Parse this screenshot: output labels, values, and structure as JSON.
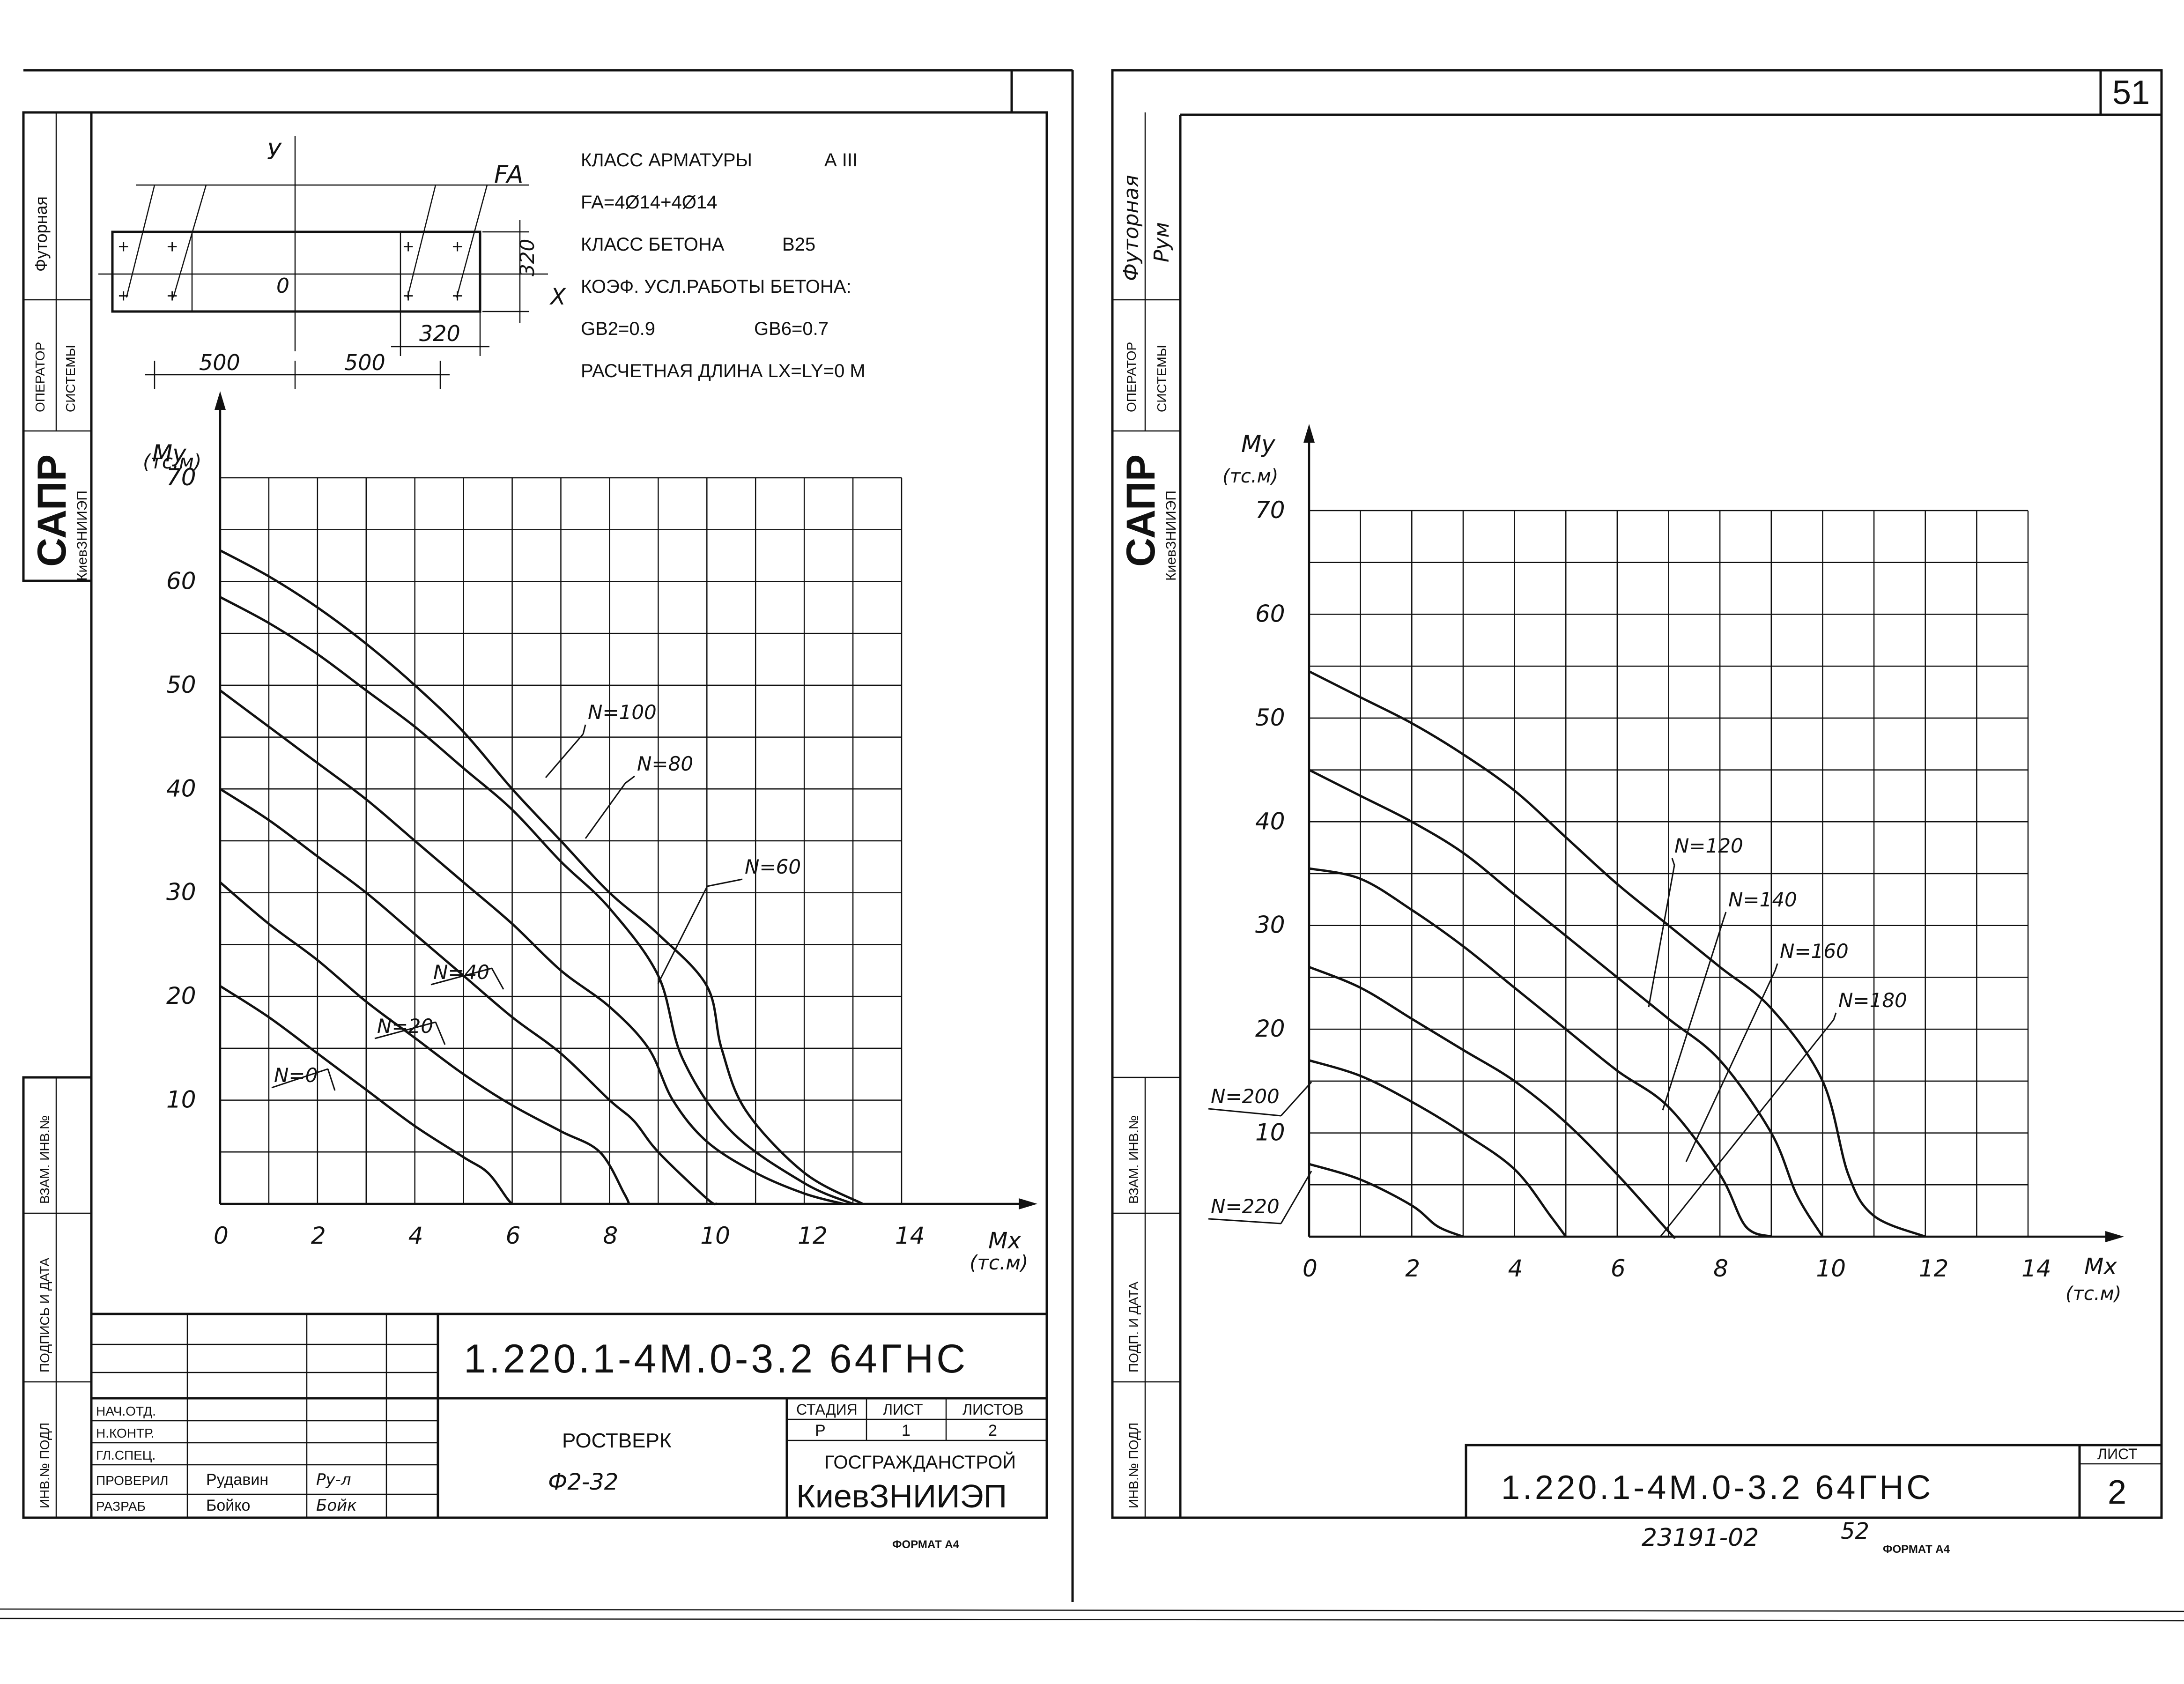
{
  "sheet_number": "51",
  "stamps": {
    "futornaya": "Футорная",
    "futornaya_sign": "Рум",
    "operator_line1": "ОПЕРАТОР",
    "operator_line2": "СИСТЕМЫ",
    "sapr": "САПР",
    "kiev": "КиевЗНИИЭП",
    "vzam_inv": "ВЗАМ. ИНВ.№",
    "podpis_data": "ПОДПИСЬ И ДАТА",
    "podp_data": "ПОДП. И ДАТА",
    "inv_podl": "ИНВ.№ ПОДЛ"
  },
  "section": {
    "y_axis": "У",
    "x_axis": "Х",
    "origin": "0",
    "fa": "FA",
    "dim_500_left": "500",
    "dim_500_right": "500",
    "dim_320_width": "320",
    "dim_320_height": "320"
  },
  "specs": {
    "line1_label": "КЛАСС АРМАТУРЫ",
    "line1_value": "А III",
    "line2": "FA=4Ø14+4Ø14",
    "line3_label": "КЛАСС БЕТОНА",
    "line3_value": "B25",
    "line4": "КОЭФ. УСЛ.РАБОТЫ БЕТОНА:",
    "line5_a": "GB2=0.9",
    "line5_b": "GB6=0.7",
    "line6": "РАСЧЕТНАЯ ДЛИНА LX=LY=0 М"
  },
  "title_block": {
    "code": "1.220.1-4М.0-3.2 64ГНС",
    "roles": [
      "НАЧ.ОТД.",
      "Н.КОНТР.",
      "ГЛ.СПЕЦ.",
      "ПРОВЕРИЛ",
      "РАЗРАБ"
    ],
    "names": [
      "",
      "",
      "",
      "Рудавин",
      "Бойко"
    ],
    "signatures": [
      "",
      "",
      "",
      "Ру-л",
      "Бойк"
    ],
    "name_line1": "РОСТВЕРК",
    "name_line2": "Ф2-32",
    "stage_header": "СТАДИЯ",
    "sheet_header": "ЛИСТ",
    "sheets_header": "ЛИСТОВ",
    "stage_value": "Р",
    "sheet_value": "1",
    "sheets_value": "2",
    "org_line1": "ГОСГРАЖДАНСТРОЙ",
    "org_line2": "КиевЗНИИЭП",
    "format": "ФОРМАТ А4"
  },
  "right_title_block": {
    "code": "1.220.1-4М.0-3.2 64ГНС",
    "list_header": "ЛИСТ",
    "list_value": "2",
    "archive": "23191-02",
    "page": "52",
    "format": "ФОРМАТ А4"
  },
  "chart_data": [
    {
      "type": "line",
      "ylabel_line1": "Му",
      "ylabel_line2": "(тс.м)",
      "xlabel_line1": "Мх",
      "xlabel_line2": "(тс.м)",
      "xlim": [
        0,
        14
      ],
      "ylim": [
        0,
        70
      ],
      "xticks": [
        "0",
        "2",
        "4",
        "6",
        "8",
        "10",
        "12",
        "14"
      ],
      "yticks": [
        "10",
        "20",
        "30",
        "40",
        "50",
        "60",
        "70"
      ],
      "grid": true,
      "series": [
        {
          "name": "N=0",
          "points": [
            [
              0,
              21
            ],
            [
              1,
              18
            ],
            [
              2,
              14.5
            ],
            [
              3,
              11
            ],
            [
              4,
              7.5
            ],
            [
              5,
              4.5
            ],
            [
              5.5,
              3
            ],
            [
              5.9,
              0.5
            ],
            [
              6,
              0
            ]
          ]
        },
        {
          "name": "N=20",
          "points": [
            [
              0,
              31
            ],
            [
              1,
              27
            ],
            [
              2,
              23.5
            ],
            [
              3,
              19.5
            ],
            [
              4,
              16
            ],
            [
              5,
              12.5
            ],
            [
              6,
              9.5
            ],
            [
              7,
              7
            ],
            [
              7.8,
              5
            ],
            [
              8.3,
              1
            ],
            [
              8.4,
              0
            ]
          ]
        },
        {
          "name": "N=40",
          "points": [
            [
              0,
              40
            ],
            [
              1,
              37
            ],
            [
              2,
              33.5
            ],
            [
              3,
              30
            ],
            [
              4,
              26
            ],
            [
              5,
              22
            ],
            [
              6,
              18
            ],
            [
              7,
              14.5
            ],
            [
              8,
              10
            ],
            [
              8.5,
              8
            ],
            [
              9,
              5
            ],
            [
              10,
              0.5
            ],
            [
              10.2,
              0
            ]
          ]
        },
        {
          "name": "N=60",
          "points": [
            [
              0,
              49.5
            ],
            [
              1,
              46
            ],
            [
              2,
              42.5
            ],
            [
              3,
              39
            ],
            [
              4,
              35
            ],
            [
              5,
              31
            ],
            [
              6,
              27
            ],
            [
              7,
              22.5
            ],
            [
              8,
              19
            ],
            [
              8.8,
              15
            ],
            [
              9.3,
              10
            ],
            [
              10,
              6
            ],
            [
              11,
              3
            ],
            [
              12,
              1
            ],
            [
              12.8,
              0
            ]
          ]
        },
        {
          "name": "N=80",
          "points": [
            [
              0,
              58.5
            ],
            [
              1,
              56
            ],
            [
              2,
              53
            ],
            [
              3,
              49.5
            ],
            [
              4,
              46
            ],
            [
              5,
              42
            ],
            [
              6,
              38
            ],
            [
              7,
              33
            ],
            [
              8,
              28.5
            ],
            [
              9,
              22
            ],
            [
              9.5,
              14
            ],
            [
              10.5,
              7
            ],
            [
              12,
              2
            ],
            [
              13,
              0
            ]
          ]
        },
        {
          "name": "N=100",
          "points": [
            [
              0,
              63
            ],
            [
              1,
              60.5
            ],
            [
              2,
              57.5
            ],
            [
              3,
              54
            ],
            [
              4,
              50
            ],
            [
              5,
              45.5
            ],
            [
              6,
              40
            ],
            [
              7,
              35
            ],
            [
              8,
              30
            ],
            [
              9,
              26
            ],
            [
              10,
              21
            ],
            [
              10.3,
              15
            ],
            [
              10.8,
              9
            ],
            [
              12,
              3
            ],
            [
              13.2,
              0
            ]
          ]
        }
      ]
    },
    {
      "type": "line",
      "ylabel_line1": "Му",
      "ylabel_line2": "(тс.м)",
      "xlabel_line1": "Мх",
      "xlabel_line2": "(тс.м)",
      "xlim": [
        0,
        14
      ],
      "ylim": [
        0,
        70
      ],
      "xticks": [
        "0",
        "2",
        "4",
        "6",
        "8",
        "10",
        "12",
        "14"
      ],
      "yticks": [
        "10",
        "20",
        "30",
        "40",
        "50",
        "60",
        "70"
      ],
      "grid": true,
      "series": [
        {
          "name": "N=120",
          "points": [
            [
              0,
              54.5
            ],
            [
              1,
              52
            ],
            [
              2,
              49.5
            ],
            [
              3,
              46.5
            ],
            [
              4,
              43
            ],
            [
              5,
              38.5
            ],
            [
              6,
              34
            ],
            [
              7,
              30
            ],
            [
              8,
              26
            ],
            [
              9,
              22
            ],
            [
              10,
              15
            ],
            [
              10.5,
              6
            ],
            [
              11,
              2
            ],
            [
              12,
              0
            ]
          ]
        },
        {
          "name": "N=140",
          "points": [
            [
              0,
              45
            ],
            [
              1,
              42.5
            ],
            [
              2,
              40
            ],
            [
              3,
              37
            ],
            [
              4,
              33
            ],
            [
              5,
              29
            ],
            [
              6,
              25
            ],
            [
              7,
              21
            ],
            [
              8,
              17
            ],
            [
              9,
              10
            ],
            [
              9.5,
              4
            ],
            [
              10,
              0
            ]
          ]
        },
        {
          "name": "N=160",
          "points": [
            [
              0,
              35.5
            ],
            [
              1,
              34.5
            ],
            [
              2,
              31.5
            ],
            [
              3,
              28
            ],
            [
              4,
              24
            ],
            [
              5,
              20
            ],
            [
              6,
              16
            ],
            [
              7,
              12.5
            ],
            [
              8,
              6
            ],
            [
              8.5,
              1
            ],
            [
              9,
              0
            ]
          ]
        },
        {
          "name": "N=180",
          "points": [
            [
              0,
              26
            ],
            [
              1,
              24
            ],
            [
              2,
              21
            ],
            [
              3,
              18
            ],
            [
              4,
              15
            ],
            [
              5,
              11
            ],
            [
              6,
              6
            ],
            [
              7,
              0.5
            ],
            [
              7.1,
              0
            ]
          ]
        },
        {
          "name": "N=200",
          "points": [
            [
              0,
              17
            ],
            [
              1,
              15.5
            ],
            [
              2,
              13
            ],
            [
              3,
              10
            ],
            [
              4,
              6.5
            ],
            [
              4.7,
              2
            ],
            [
              5,
              0
            ]
          ]
        },
        {
          "name": "N=220",
          "points": [
            [
              0,
              7
            ],
            [
              1,
              5.5
            ],
            [
              2,
              3
            ],
            [
              2.5,
              1
            ],
            [
              3,
              0
            ]
          ]
        }
      ]
    }
  ]
}
